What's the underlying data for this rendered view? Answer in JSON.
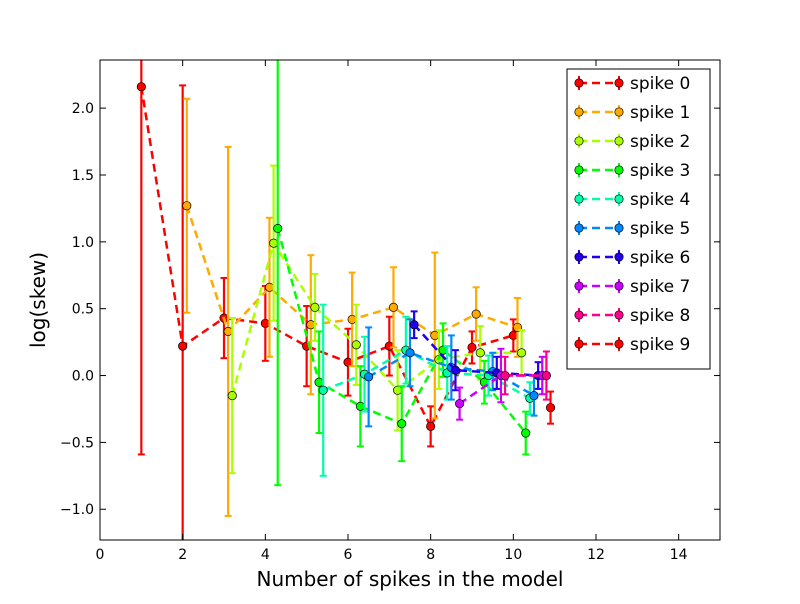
{
  "chart_data": {
    "type": "line",
    "title": "",
    "xlabel": "Number of spikes in the model",
    "ylabel": "log(skew)",
    "xlim": [
      0,
      15
    ],
    "ylim": [
      -1.23,
      2.36
    ],
    "xticks": [
      0,
      2,
      4,
      6,
      8,
      10,
      12,
      14
    ],
    "yticks": [
      -1.0,
      -0.5,
      0.0,
      0.5,
      1.0,
      1.5,
      2.0
    ],
    "xtick_labels": [
      "0",
      "2",
      "4",
      "6",
      "8",
      "10",
      "12",
      "14"
    ],
    "ytick_labels": [
      "−1.0",
      "−0.5",
      "0.0",
      "0.5",
      "1.0",
      "1.5",
      "2.0"
    ],
    "grid": false,
    "legend_position": "top-right",
    "line_style": "dashed",
    "series": [
      {
        "name": "spike 0",
        "color": "#ff0000",
        "x": [
          1.0,
          2.0,
          3.0,
          4.0,
          5.0,
          6.0,
          7.0,
          8.0,
          9.0,
          10.0
        ],
        "y": [
          2.16,
          0.22,
          0.43,
          0.39,
          0.22,
          0.1,
          0.22,
          -0.38,
          0.21,
          0.3
        ],
        "err": [
          2.75,
          1.95,
          0.3,
          0.28,
          0.3,
          0.25,
          0.22,
          0.15,
          0.12,
          0.12
        ]
      },
      {
        "name": "spike 1",
        "color": "#ffaa00",
        "x": [
          2.1,
          3.1,
          4.1,
          5.1,
          6.1,
          7.1,
          8.1,
          9.1,
          10.1
        ],
        "y": [
          1.27,
          0.33,
          0.66,
          0.38,
          0.42,
          0.51,
          0.3,
          0.46,
          0.36
        ],
        "err": [
          0.8,
          1.38,
          0.52,
          0.52,
          0.35,
          0.3,
          0.62,
          0.2,
          0.22
        ]
      },
      {
        "name": "spike 2",
        "color": "#aaff00",
        "x": [
          3.2,
          4.2,
          5.2,
          6.2,
          7.2,
          8.2,
          9.2,
          10.2
        ],
        "y": [
          -0.15,
          0.99,
          0.51,
          0.23,
          -0.11,
          0.12,
          0.17,
          0.17
        ],
        "err": [
          0.58,
          0.58,
          0.25,
          0.3,
          0.3,
          0.22,
          0.2,
          0.17
        ]
      },
      {
        "name": "spike 3",
        "color": "#00ff00",
        "x": [
          4.3,
          5.3,
          6.3,
          7.3,
          8.3,
          9.3,
          10.3
        ],
        "y": [
          1.1,
          -0.05,
          -0.23,
          -0.36,
          0.19,
          -0.05,
          -0.43
        ],
        "err": [
          1.92,
          0.38,
          0.3,
          0.28,
          0.2,
          0.16,
          0.16
        ]
      },
      {
        "name": "spike 4",
        "color": "#00ffaa",
        "x": [
          5.4,
          6.4,
          7.4,
          8.4,
          9.4,
          10.4
        ],
        "y": [
          -0.11,
          0.01,
          0.19,
          0.02,
          0.0,
          -0.17
        ],
        "err": [
          0.64,
          0.28,
          0.25,
          0.2,
          0.15,
          0.12
        ]
      },
      {
        "name": "spike 5",
        "color": "#0088ff",
        "x": [
          6.5,
          7.5,
          8.5,
          9.5,
          10.5
        ],
        "y": [
          -0.01,
          0.17,
          0.06,
          0.03,
          -0.15
        ],
        "err": [
          0.37,
          0.25,
          0.24,
          0.14,
          0.15
        ]
      },
      {
        "name": "spike 6",
        "color": "#2200ee",
        "x": [
          7.6,
          8.6,
          9.6,
          10.6
        ],
        "y": [
          0.38,
          0.04,
          0.02,
          0.0
        ],
        "err": [
          0.1,
          0.15,
          0.12,
          0.1
        ]
      },
      {
        "name": "spike 7",
        "color": "#cc00ff",
        "x": [
          8.7,
          9.7,
          10.7
        ],
        "y": [
          -0.21,
          0.0,
          0.0
        ],
        "err": [
          0.12,
          0.2,
          0.14
        ]
      },
      {
        "name": "spike 8",
        "color": "#ff0088",
        "x": [
          9.8,
          10.8
        ],
        "y": [
          0.0,
          0.0
        ],
        "err": [
          0.14,
          0.18
        ]
      },
      {
        "name": "spike 9",
        "color": "#ff0000",
        "x": [
          10.9
        ],
        "y": [
          -0.24
        ],
        "err": [
          0.12
        ]
      }
    ]
  }
}
